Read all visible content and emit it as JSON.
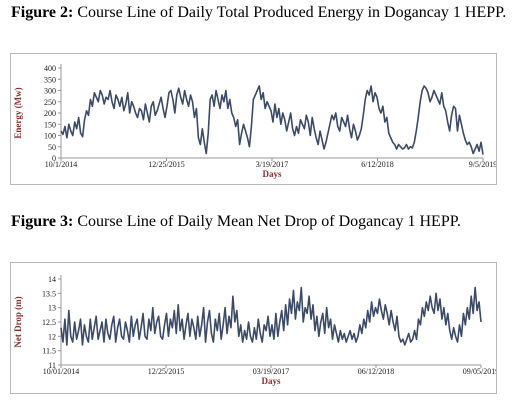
{
  "captions": [
    {
      "label": "Figure 2:",
      "text": "Course Line of Daily Total Produced Energy in Dogancay 1 HEPP."
    },
    {
      "label": "Figure 3:",
      "text": "Course Line of Daily Mean Net Drop of Dogancay 1 HEPP."
    }
  ],
  "chart_data": [
    {
      "type": "line",
      "title": "",
      "xlabel": "Days",
      "ylabel": "Energy (Mw)",
      "ylim": [
        0,
        400
      ],
      "yticks": [
        "0",
        "50",
        "100",
        "150",
        "200",
        "250",
        "300",
        "350",
        "400"
      ],
      "xticks": [
        "10/1/2014",
        "12/25/2015",
        "3/19/2017",
        "6/12/2018",
        "9/5/2019"
      ],
      "grid": false,
      "color": "#3b4a66",
      "series": [
        {
          "values": [
            120,
            105,
            140,
            90,
            150,
            120,
            100,
            160,
            130,
            180,
            110,
            95,
            170,
            210,
            190,
            260,
            230,
            290,
            270,
            250,
            300,
            280,
            240,
            270,
            260,
            300,
            250,
            220,
            280,
            260,
            230,
            270,
            210,
            240,
            290,
            200,
            250,
            230,
            200,
            180,
            220,
            210,
            170,
            240,
            200,
            160,
            230,
            250,
            190,
            210,
            240,
            270,
            220,
            180,
            230,
            290,
            300,
            260,
            200,
            280,
            310,
            270,
            240,
            300,
            260,
            230,
            280,
            250,
            180,
            220,
            90,
            60,
            130,
            70,
            20,
            110,
            260,
            280,
            230,
            300,
            260,
            220,
            280,
            250,
            300,
            220,
            260,
            200,
            180,
            140,
            170,
            60,
            110,
            150,
            120,
            90,
            50,
            140,
            260,
            280,
            300,
            320,
            260,
            290,
            220,
            250,
            230,
            210,
            160,
            240,
            180,
            220,
            150,
            200,
            170,
            120,
            160,
            200,
            130,
            100,
            140,
            110,
            170,
            150,
            130,
            190,
            160,
            100,
            180,
            130,
            90,
            60,
            120,
            80,
            40,
            70,
            110,
            150,
            190,
            170,
            200,
            140,
            120,
            180,
            160,
            140,
            190,
            130,
            90,
            150,
            120,
            80,
            100,
            130,
            190,
            260,
            300,
            280,
            320,
            250,
            290,
            270,
            220,
            200,
            230,
            160,
            180,
            110,
            90,
            70,
            60,
            40,
            60,
            50,
            40,
            45,
            60,
            40,
            50,
            45,
            70,
            120,
            180,
            250,
            300,
            320,
            310,
            290,
            250,
            270,
            300,
            280,
            260,
            240,
            290,
            230,
            210,
            160,
            120,
            190,
            230,
            220,
            120,
            190,
            150,
            110,
            80,
            60,
            70,
            50,
            20,
            40,
            60,
            30,
            70,
            15
          ]
        }
      ]
    },
    {
      "type": "line",
      "title": "",
      "xlabel": "Days",
      "ylabel": "Net Drop (m)",
      "ylim": [
        11,
        14
      ],
      "yticks": [
        "11",
        "11.5",
        "12",
        "12.5",
        "13",
        "13.5",
        "14"
      ],
      "xticks": [
        "10/01/2014",
        "12/25/2015",
        "03/19/2017",
        "06/12/2018",
        "09/05/2019"
      ],
      "grid": false,
      "color": "#3b4a66",
      "series": [
        {
          "values": [
            12.3,
            11.8,
            12.6,
            11.7,
            12.9,
            12.0,
            11.8,
            12.5,
            11.9,
            12.2,
            12.6,
            11.7,
            12.4,
            12.0,
            11.8,
            12.6,
            11.9,
            12.3,
            12.7,
            11.9,
            12.2,
            12.5,
            11.8,
            12.6,
            12.1,
            11.9,
            12.4,
            12.7,
            11.8,
            12.3,
            12.6,
            12.0,
            11.9,
            12.5,
            12.2,
            11.8,
            12.7,
            12.0,
            12.4,
            12.6,
            11.9,
            12.3,
            12.8,
            12.0,
            11.9,
            12.6,
            12.2,
            13.0,
            12.1,
            12.5,
            12.7,
            12.0,
            11.9,
            12.4,
            12.8,
            12.0,
            12.6,
            12.3,
            12.9,
            12.1,
            13.1,
            12.2,
            12.6,
            11.9,
            12.4,
            12.8,
            12.0,
            12.6,
            12.3,
            11.9,
            12.7,
            12.0,
            12.4,
            13.0,
            11.8,
            12.5,
            12.9,
            12.1,
            11.8,
            12.6,
            12.2,
            12.8,
            11.9,
            12.4,
            13.0,
            12.1,
            12.7,
            12.3,
            13.4,
            12.5,
            12.9,
            12.0,
            12.4,
            11.8,
            12.2,
            11.9,
            12.5,
            12.0,
            11.8,
            12.3,
            11.9,
            12.6,
            12.1,
            11.8,
            12.4,
            12.2,
            12.7,
            12.0,
            12.4,
            11.9,
            12.8,
            12.0,
            12.5,
            12.9,
            12.2,
            13.1,
            12.4,
            13.3,
            12.8,
            13.6,
            12.6,
            13.2,
            12.9,
            13.7,
            12.5,
            13.0,
            12.8,
            13.4,
            12.6,
            13.1,
            12.2,
            12.7,
            12.0,
            12.5,
            12.8,
            12.1,
            13.0,
            12.3,
            12.6,
            11.9,
            12.4,
            12.1,
            11.8,
            12.2,
            11.9,
            12.1,
            11.8,
            12.0,
            12.2,
            11.9,
            12.1,
            11.8,
            12.0,
            12.4,
            12.1,
            12.6,
            12.3,
            12.9,
            12.5,
            13.2,
            12.7,
            13.0,
            12.8,
            13.3,
            12.9,
            12.6,
            13.1,
            12.8,
            12.4,
            12.9,
            12.5,
            12.2,
            12.7,
            12.0,
            11.8,
            11.9,
            11.7,
            11.9,
            12.1,
            11.8,
            11.9,
            12.2,
            11.9,
            12.6,
            12.4,
            13.0,
            12.7,
            13.2,
            12.9,
            13.4,
            13.0,
            12.8,
            13.5,
            12.9,
            13.3,
            12.6,
            13.0,
            12.4,
            12.8,
            12.2,
            11.9,
            12.3,
            12.0,
            11.8,
            12.4,
            12.0,
            12.8,
            12.4,
            13.0,
            12.6,
            13.4,
            12.8,
            13.7,
            12.9,
            13.2,
            12.5
          ]
        }
      ]
    }
  ]
}
